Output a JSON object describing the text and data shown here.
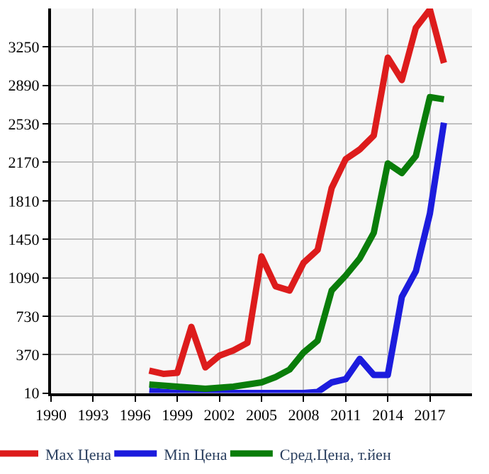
{
  "chart_data": {
    "type": "line",
    "x": [
      1997,
      1998,
      1999,
      2000,
      2001,
      2002,
      2003,
      2004,
      2005,
      2006,
      2007,
      2008,
      2009,
      2010,
      2011,
      2012,
      2013,
      2014,
      2015,
      2016,
      2017,
      2018
    ],
    "series": [
      {
        "name": "Max Цена",
        "color": "#dd1c1c",
        "values": [
          220,
          190,
          200,
          630,
          250,
          360,
          410,
          480,
          1290,
          1010,
          970,
          1230,
          1350,
          1930,
          2200,
          2290,
          2420,
          3150,
          2940,
          3430,
          3600,
          3100
        ]
      },
      {
        "name": "Min Цена",
        "color": "#1c1cdd",
        "values": [
          30,
          20,
          10,
          10,
          10,
          10,
          10,
          10,
          10,
          10,
          10,
          10,
          20,
          110,
          140,
          330,
          180,
          180,
          910,
          1150,
          1690,
          2540
        ]
      },
      {
        "name": "Сред.Цена, т.йен",
        "color": "#0a7d0a",
        "values": [
          90,
          80,
          70,
          60,
          50,
          60,
          70,
          90,
          110,
          160,
          230,
          390,
          500,
          970,
          1110,
          1270,
          1510,
          2160,
          2070,
          2230,
          2780,
          2760
        ]
      }
    ],
    "xlim": [
      1990,
      2020
    ],
    "xticks": [
      1990,
      1993,
      1996,
      1999,
      2002,
      2005,
      2008,
      2011,
      2014,
      2017
    ],
    "ylim": [
      10,
      3610
    ],
    "yticks": [
      10,
      370,
      730,
      1090,
      1450,
      1810,
      2170,
      2530,
      2890,
      3250
    ],
    "grid": true,
    "legend": "bottom",
    "marker": "none",
    "line_style": "solid"
  }
}
